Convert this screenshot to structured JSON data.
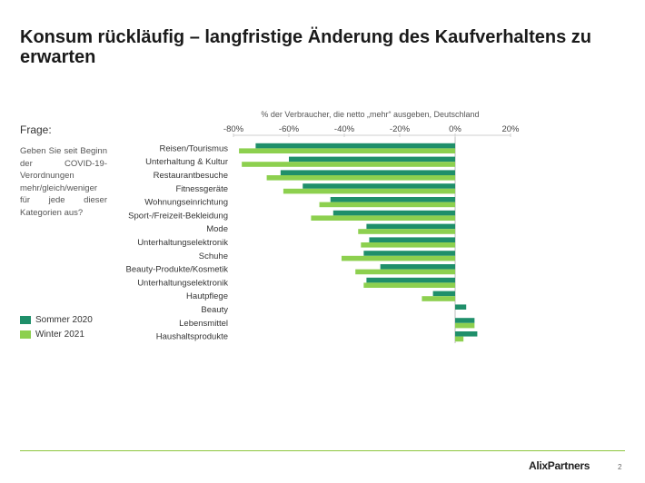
{
  "title": "Konsum rückläufig – langfristige Änderung des Kaufverhaltens zu erwarten",
  "question": {
    "label": "Frage:",
    "text": "Geben Sie seit Beginn der COVID-19-Verordnungen mehr/gleich/weniger für jede dieser Kategorien aus?"
  },
  "colors": {
    "series1": "#1f8f6a",
    "series2": "#8dd04f",
    "axis": "#cfcfcf",
    "footer": "#8dc63f"
  },
  "footer": {
    "brand": "AlixPartners",
    "page": "2"
  },
  "chart_data": {
    "type": "bar",
    "orientation": "horizontal",
    "title": "% der Verbraucher, die netto „mehr“ ausgeben, Deutschland",
    "categories": [
      "Reisen/Tourismus",
      "Unterhaltung & Kultur",
      "Restaurantbesuche",
      "Fitnessgeräte",
      "Wohnungseinrichtung",
      "Sport-/Freizeit-Bekleidung",
      "Mode",
      "Unterhaltungselektronik",
      "Schuhe",
      "Beauty-Produkte/Kosmetik",
      "Unterhaltungselektronik",
      "Hautpflege",
      "Beauty",
      "Lebensmittel",
      "Haushaltsprodukte"
    ],
    "series": [
      {
        "name": "Sommer 2020",
        "color": "#1f8f6a",
        "values": [
          -72,
          -60,
          -63,
          -55,
          -45,
          -44,
          -32,
          -31,
          -33,
          -27,
          -32,
          -8,
          4,
          7,
          8
        ]
      },
      {
        "name": "Winter 2021",
        "color": "#8dd04f",
        "values": [
          -78,
          -77,
          -68,
          -62,
          -49,
          -52,
          -35,
          -34,
          -41,
          -36,
          -33,
          -12,
          0,
          7,
          3
        ]
      }
    ],
    "xlim": [
      -80,
      20
    ],
    "ticks": [
      -80,
      -60,
      -40,
      -20,
      0,
      20
    ],
    "tick_labels": [
      "-80%",
      "-60%",
      "-40%",
      "-20%",
      "0%",
      "20%"
    ],
    "legend_position": "left"
  }
}
